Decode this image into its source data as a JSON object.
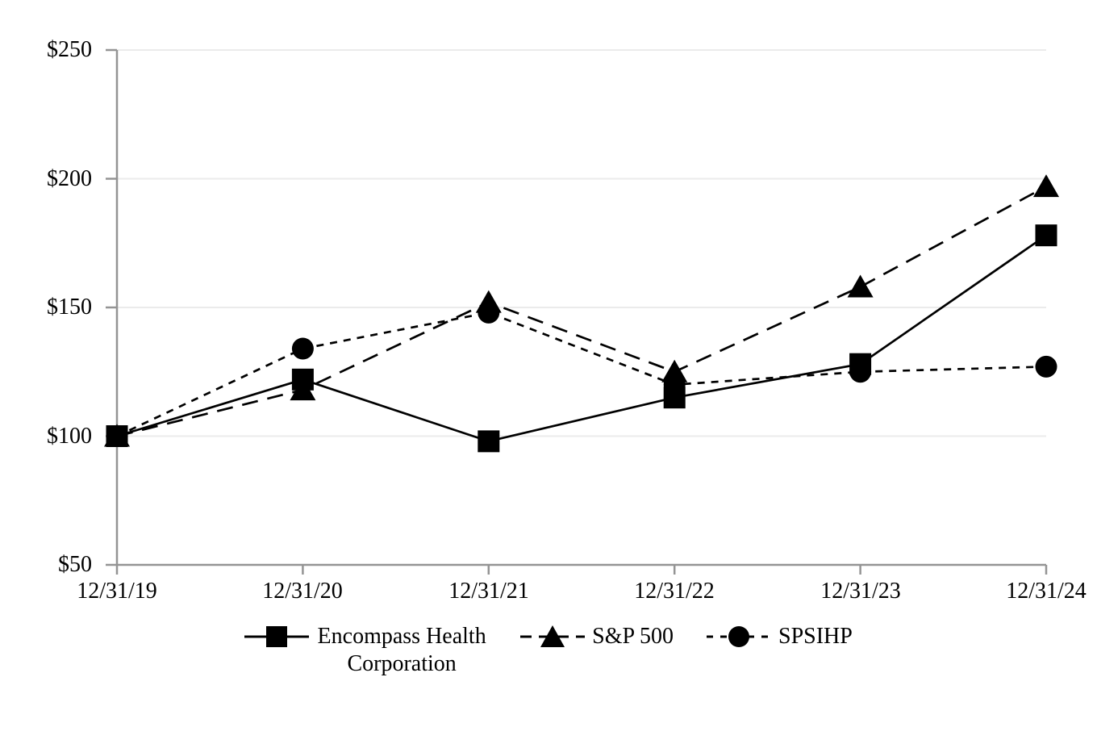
{
  "page": {
    "background": "#ffffff"
  },
  "chart_data": {
    "type": "line",
    "title": "",
    "categories": [
      "12/31/19",
      "12/31/20",
      "12/31/21",
      "12/31/22",
      "12/31/23",
      "12/31/24"
    ],
    "y_tick_labels": [
      "$50",
      "$100",
      "$150",
      "$200",
      "$250"
    ],
    "y_ticks": [
      50,
      100,
      150,
      200,
      250
    ],
    "ylim": [
      50,
      250
    ],
    "grid": "horizontal-light",
    "legend_position": "bottom-center",
    "axis_color": "#949494",
    "grid_color": "#ebebeb",
    "series": [
      {
        "name": "Encompass Health Corporation",
        "marker": "square",
        "line_style": "solid",
        "color": "#000000",
        "values": [
          100,
          122,
          98,
          115,
          128,
          178
        ]
      },
      {
        "name": "S&P 500",
        "marker": "triangle",
        "line_style": "long-dash",
        "color": "#000000",
        "values": [
          100,
          118,
          152,
          125,
          158,
          197
        ]
      },
      {
        "name": "SPSIHP",
        "marker": "circle",
        "line_style": "short-dash",
        "color": "#000000",
        "values": [
          100,
          134,
          148,
          120,
          125,
          127
        ]
      }
    ]
  }
}
